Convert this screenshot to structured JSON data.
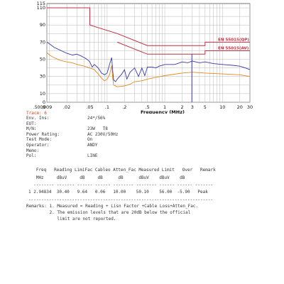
{
  "chart_data": {
    "type": "line",
    "xlabel": "Frequency (MHz)",
    "x_scale": "log",
    "xlim": [
      0.009,
      30
    ],
    "ylim": [
      0,
      115
    ],
    "x_ticks": [
      ".009",
      ".02",
      ".05",
      ".1",
      ".2",
      ".5",
      "1",
      "2",
      "3",
      "5",
      "10",
      "20",
      "30"
    ],
    "y_ticks": [
      "115",
      "110",
      "90",
      "70",
      "50",
      "30",
      "10",
      "0"
    ],
    "corner_label": ".5009",
    "grid": true,
    "limits": [
      {
        "name": "EN 55015(QP)",
        "color": "#c03040",
        "points": [
          [
            0.009,
            110
          ],
          [
            0.05,
            110
          ],
          [
            0.05,
            90
          ],
          [
            0.15,
            80
          ],
          [
            0.15,
            80
          ],
          [
            0.5,
            66
          ],
          [
            0.5,
            66
          ],
          [
            5,
            66
          ],
          [
            5,
            70
          ],
          [
            30,
            70
          ]
        ]
      },
      {
        "name": "EN 55015(AV)",
        "color": "#c03040",
        "points": [
          [
            0.15,
            70
          ],
          [
            0.5,
            56
          ],
          [
            5,
            56
          ],
          [
            5,
            60
          ],
          [
            30,
            60
          ]
        ]
      }
    ],
    "series": [
      {
        "color": "#3a3aa8",
        "points": [
          [
            0.009,
            70
          ],
          [
            0.01,
            68
          ],
          [
            0.012,
            64
          ],
          [
            0.015,
            61
          ],
          [
            0.02,
            57
          ],
          [
            0.025,
            55
          ],
          [
            0.03,
            56
          ],
          [
            0.035,
            54
          ],
          [
            0.04,
            52
          ],
          [
            0.045,
            50
          ],
          [
            0.05,
            47
          ],
          [
            0.055,
            41
          ],
          [
            0.06,
            44
          ],
          [
            0.07,
            40
          ],
          [
            0.08,
            34
          ],
          [
            0.09,
            32
          ],
          [
            0.1,
            34
          ],
          [
            0.11,
            44
          ],
          [
            0.12,
            52
          ],
          [
            0.125,
            36
          ],
          [
            0.13,
            26
          ],
          [
            0.14,
            24
          ],
          [
            0.15,
            27
          ],
          [
            0.18,
            33
          ],
          [
            0.2,
            38
          ],
          [
            0.22,
            27
          ],
          [
            0.25,
            35
          ],
          [
            0.3,
            40
          ],
          [
            0.35,
            30
          ],
          [
            0.4,
            40
          ],
          [
            0.45,
            31
          ],
          [
            0.5,
            41
          ],
          [
            0.6,
            41
          ],
          [
            0.7,
            40
          ],
          [
            0.8,
            42
          ],
          [
            1,
            44
          ],
          [
            1.5,
            44
          ],
          [
            2,
            47
          ],
          [
            2.5,
            46
          ],
          [
            3,
            48
          ],
          [
            4,
            46
          ],
          [
            5,
            47
          ],
          [
            7,
            45
          ],
          [
            10,
            44
          ],
          [
            15,
            43
          ],
          [
            20,
            42
          ],
          [
            25,
            40
          ],
          [
            30,
            38
          ]
        ]
      },
      {
        "color": "#e08a20",
        "points": [
          [
            0.009,
            58
          ],
          [
            0.01,
            55
          ],
          [
            0.012,
            52
          ],
          [
            0.015,
            49
          ],
          [
            0.02,
            47
          ],
          [
            0.025,
            46
          ],
          [
            0.03,
            44
          ],
          [
            0.04,
            42
          ],
          [
            0.05,
            40
          ],
          [
            0.06,
            38
          ],
          [
            0.07,
            33
          ],
          [
            0.08,
            28
          ],
          [
            0.09,
            25
          ],
          [
            0.1,
            27
          ],
          [
            0.11,
            32
          ],
          [
            0.12,
            43
          ],
          [
            0.125,
            28
          ],
          [
            0.13,
            20
          ],
          [
            0.15,
            18
          ],
          [
            0.2,
            19
          ],
          [
            0.25,
            21
          ],
          [
            0.3,
            24
          ],
          [
            0.4,
            25
          ],
          [
            0.5,
            27
          ],
          [
            0.7,
            29
          ],
          [
            1,
            31
          ],
          [
            2,
            34
          ],
          [
            3,
            35
          ],
          [
            5,
            34
          ],
          [
            10,
            33
          ],
          [
            20,
            32
          ],
          [
            30,
            30
          ]
        ]
      }
    ]
  },
  "trace_label": "Trace: 6",
  "info": [
    {
      "label": "Env. Ins:",
      "value": "24*/56%"
    },
    {
      "label": "EUT:",
      "value": ""
    },
    {
      "label": "M/N:",
      "value": "23W   T8"
    },
    {
      "label": "Power Rating:",
      "value": "AC 230V/50Hz"
    },
    {
      "label": "Test Mode:",
      "value": "On"
    },
    {
      "label": "Operator:",
      "value": "ANDY"
    },
    {
      "label": "Memo:",
      "value": ""
    },
    {
      "label": "Pol:",
      "value": "LINE"
    }
  ],
  "table": {
    "header1": "   Freq   Reading LimiFac Cableo Atten_Fac Measured Limit   Over   Remark",
    "header2": "   MHz     dBuV     dB     dB      dB      dBuV    dBuV    dB",
    "divider": "  -------- ------- ------ ------ -------- -------- ------ ------ -------",
    "row": "1 2.94834  30.40   9.64   0.06   10.00    50.10    56.00  -5.90   Peak",
    "divider2": "------------------------------------------------------------------------"
  },
  "remarks": {
    "line1": "Remarks: 1. Measured = Reading + Lisn Factor +Cable Loss+Atten_Fac.",
    "line2": "         2. The emission levels that are 20dB below the official",
    "line3": "            limit are not reported."
  }
}
